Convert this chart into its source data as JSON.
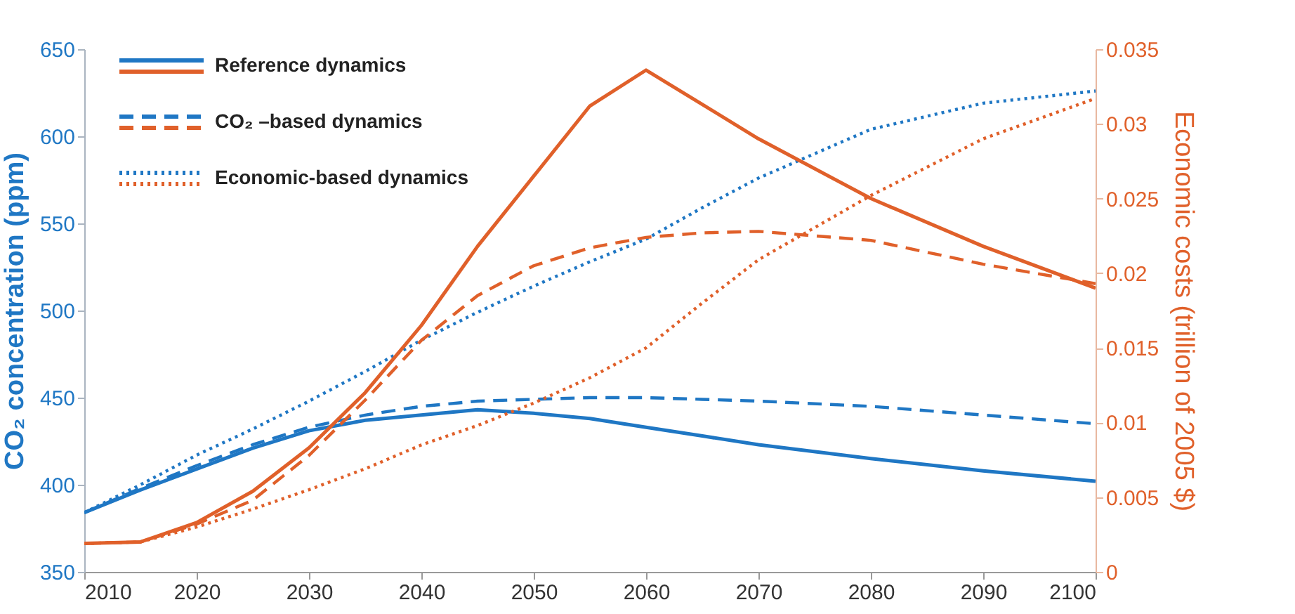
{
  "chart_data": {
    "type": "line",
    "xlabel": null,
    "ylabel": "CO₂ concentration (ppm)",
    "y2label": "Economic costs (trillion of 2005 $)",
    "x": [
      2010,
      2015,
      2020,
      2025,
      2030,
      2035,
      2040,
      2045,
      2050,
      2055,
      2060,
      2065,
      2070,
      2080,
      2090,
      2100
    ],
    "xlim": [
      2010,
      2100
    ],
    "xticks": [
      2010,
      2020,
      2030,
      2040,
      2050,
      2060,
      2070,
      2080,
      2090,
      2100
    ],
    "ylim": [
      350,
      650
    ],
    "yticks": [
      350,
      400,
      450,
      500,
      550,
      600,
      650
    ],
    "y2lim": [
      0,
      0.035
    ],
    "y2ticks": [
      0,
      0.005,
      0.01,
      0.015,
      0.02,
      0.025,
      0.03,
      0.035
    ],
    "grid": false,
    "legend": "top left",
    "marker": "none",
    "series": [
      {
        "name": "Reference dynamics",
        "color": "#1f77c4",
        "line_style": "solid",
        "values": [
          384,
          397,
          409,
          421,
          431,
          437,
          440,
          443,
          441,
          438,
          433,
          428,
          423,
          415,
          408,
          402
        ]
      },
      {
        "color": "#e0602a",
        "line_style": "solid",
        "axis": "y2",
        "values": [
          0.0019,
          0.002,
          0.0033,
          0.0054,
          0.0083,
          0.012,
          0.0165,
          0.0218,
          0.0265,
          0.0312,
          0.0336,
          0.0313,
          0.029,
          0.025,
          0.0218,
          0.019
        ]
      },
      {
        "name": "CO₂ –based dynamics",
        "color": "#1f77c4",
        "line_style": "dashed",
        "values": [
          384,
          398,
          411,
          423,
          433,
          440,
          445,
          448,
          449,
          450,
          450,
          449,
          448,
          445,
          440,
          435
        ]
      },
      {
        "color": "#e0602a",
        "line_style": "dashed",
        "axis": "y2",
        "values": [
          0.0019,
          0.002,
          0.0032,
          0.0048,
          0.0078,
          0.0115,
          0.0155,
          0.0185,
          0.0205,
          0.0217,
          0.0224,
          0.0227,
          0.0228,
          0.0222,
          0.0206,
          0.0193
        ]
      },
      {
        "name": "Economic-based dynamics",
        "color": "#1f77c4",
        "line_style": "dotted",
        "values": [
          384,
          400,
          417,
          432,
          448,
          465,
          483,
          499,
          514,
          528,
          541,
          559,
          576,
          604,
          619,
          626
        ]
      },
      {
        "color": "#e0602a",
        "line_style": "dotted",
        "axis": "y2",
        "values": [
          0.0019,
          0.002,
          0.003,
          0.0042,
          0.0055,
          0.0069,
          0.0085,
          0.0098,
          0.0113,
          0.013,
          0.015,
          0.018,
          0.0209,
          0.0252,
          0.029,
          0.0317
        ]
      }
    ]
  }
}
